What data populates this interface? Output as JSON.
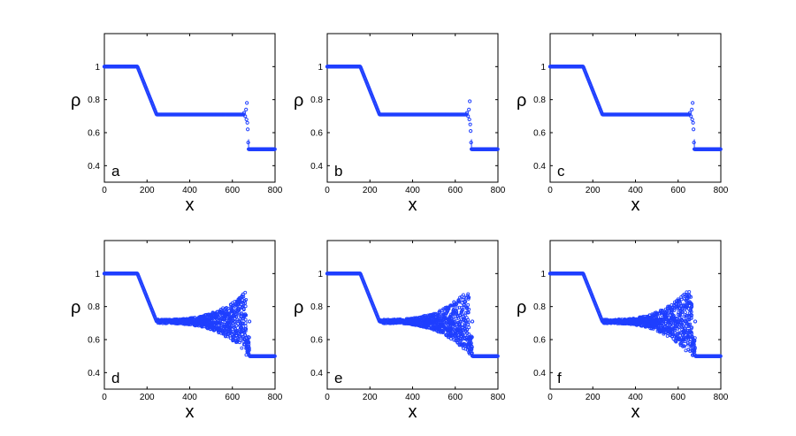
{
  "chart_data": [
    {
      "type": "line",
      "panel_label": "a",
      "xlabel": "x",
      "ylabel": "ρ",
      "xlim": [
        0,
        800
      ],
      "ylim": [
        0.3,
        1.2
      ],
      "x_ticks": [
        "0",
        "200",
        "400",
        "600",
        "800"
      ],
      "y_ticks": [
        "0.4",
        "0.6",
        "0.8",
        "1"
      ],
      "marker": "circle",
      "color": "#1f3fff",
      "profile": [
        [
          0,
          1.0
        ],
        [
          155,
          1.0
        ],
        [
          245,
          0.71
        ],
        [
          660,
          0.71
        ],
        [
          670,
          0.5
        ],
        [
          800,
          0.5
        ]
      ],
      "scatter": [
        [
          655,
          0.72
        ],
        [
          660,
          0.7
        ],
        [
          664,
          0.74
        ],
        [
          666,
          0.68
        ],
        [
          668,
          0.78
        ],
        [
          670,
          0.66
        ],
        [
          672,
          0.62
        ],
        [
          674,
          0.54
        ],
        [
          676,
          0.5
        ],
        [
          678,
          0.5
        ]
      ]
    },
    {
      "type": "line",
      "panel_label": "b",
      "xlabel": "x",
      "ylabel": "ρ",
      "xlim": [
        0,
        800
      ],
      "ylim": [
        0.3,
        1.2
      ],
      "x_ticks": [
        "0",
        "200",
        "400",
        "600",
        "800"
      ],
      "y_ticks": [
        "0.4",
        "0.6",
        "0.8",
        "1"
      ],
      "marker": "circle",
      "color": "#1f3fff",
      "profile": [
        [
          0,
          1.0
        ],
        [
          155,
          1.0
        ],
        [
          245,
          0.71
        ],
        [
          660,
          0.71
        ],
        [
          670,
          0.5
        ],
        [
          800,
          0.5
        ]
      ],
      "scatter": [
        [
          655,
          0.72
        ],
        [
          660,
          0.7
        ],
        [
          664,
          0.74
        ],
        [
          666,
          0.68
        ],
        [
          668,
          0.79
        ],
        [
          670,
          0.65
        ],
        [
          672,
          0.61
        ],
        [
          674,
          0.54
        ],
        [
          676,
          0.5
        ],
        [
          678,
          0.5
        ]
      ]
    },
    {
      "type": "line",
      "panel_label": "c",
      "xlabel": "x",
      "ylabel": "ρ",
      "xlim": [
        0,
        800
      ],
      "ylim": [
        0.3,
        1.2
      ],
      "x_ticks": [
        "0",
        "200",
        "400",
        "600",
        "800"
      ],
      "y_ticks": [
        "0.4",
        "0.6",
        "0.8",
        "1"
      ],
      "marker": "circle",
      "color": "#1f3fff",
      "profile": [
        [
          0,
          1.0
        ],
        [
          155,
          1.0
        ],
        [
          245,
          0.71
        ],
        [
          660,
          0.71
        ],
        [
          670,
          0.5
        ],
        [
          800,
          0.5
        ]
      ],
      "scatter": [
        [
          655,
          0.72
        ],
        [
          660,
          0.7
        ],
        [
          664,
          0.74
        ],
        [
          666,
          0.68
        ],
        [
          668,
          0.78
        ],
        [
          670,
          0.66
        ],
        [
          672,
          0.62
        ],
        [
          674,
          0.54
        ],
        [
          676,
          0.5
        ],
        [
          678,
          0.5
        ]
      ]
    },
    {
      "type": "line",
      "panel_label": "d",
      "xlabel": "x",
      "ylabel": "ρ",
      "xlim": [
        0,
        800
      ],
      "ylim": [
        0.3,
        1.2
      ],
      "x_ticks": [
        "0",
        "200",
        "400",
        "600",
        "800"
      ],
      "y_ticks": [
        "0.4",
        "0.6",
        "0.8",
        "1"
      ],
      "marker": "circle",
      "color": "#1f3fff",
      "profile": [
        [
          0,
          1.0
        ],
        [
          155,
          1.0
        ],
        [
          245,
          0.71
        ],
        [
          680,
          0.71
        ],
        [
          680,
          0.5
        ],
        [
          800,
          0.5
        ]
      ],
      "fan": {
        "x_start": 250,
        "x_end": 665,
        "x_peak": 660,
        "center": 0.71,
        "spread_max": 0.17
      }
    },
    {
      "type": "line",
      "panel_label": "e",
      "xlabel": "x",
      "ylabel": "ρ",
      "xlim": [
        0,
        800
      ],
      "ylim": [
        0.3,
        1.2
      ],
      "x_ticks": [
        "0",
        "200",
        "400",
        "600",
        "800"
      ],
      "y_ticks": [
        "0.4",
        "0.6",
        "0.8",
        "1"
      ],
      "marker": "circle",
      "color": "#1f3fff",
      "profile": [
        [
          0,
          1.0
        ],
        [
          155,
          1.0
        ],
        [
          245,
          0.71
        ],
        [
          680,
          0.71
        ],
        [
          680,
          0.5
        ],
        [
          800,
          0.5
        ]
      ],
      "fan": {
        "x_start": 250,
        "x_end": 665,
        "x_peak": 660,
        "center": 0.71,
        "spread_max": 0.18
      }
    },
    {
      "type": "line",
      "panel_label": "f",
      "xlabel": "x",
      "ylabel": "ρ",
      "xlim": [
        0,
        800
      ],
      "ylim": [
        0.3,
        1.2
      ],
      "x_ticks": [
        "0",
        "200",
        "400",
        "600",
        "800"
      ],
      "y_ticks": [
        "0.4",
        "0.6",
        "0.8",
        "1"
      ],
      "marker": "circle",
      "color": "#1f3fff",
      "profile": [
        [
          0,
          1.0
        ],
        [
          155,
          1.0
        ],
        [
          245,
          0.71
        ],
        [
          680,
          0.71
        ],
        [
          680,
          0.5
        ],
        [
          800,
          0.5
        ]
      ],
      "fan": {
        "x_start": 250,
        "x_end": 665,
        "x_peak": 640,
        "center": 0.71,
        "spread_max": 0.17
      }
    }
  ]
}
